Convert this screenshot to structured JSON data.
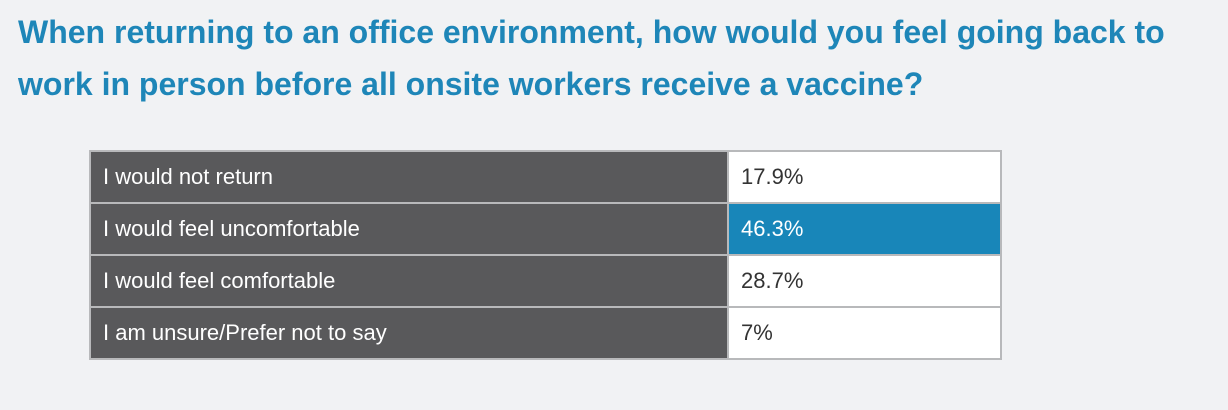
{
  "title": "When returning to an office environment, how would you feel going back to work in person before all onsite workers receive a vaccine?",
  "accent_color": "#1e86b8",
  "highlight_color": "#1886b9",
  "label_cell_color": "#59595b",
  "chart_data": {
    "type": "table",
    "title": "When returning to an office environment, how would you feel going back to work in person before all onsite workers receive a vaccine?",
    "categories": [
      "I would not return",
      "I would feel uncomfortable",
      "I would feel comfortable",
      "I am unsure/Prefer not to say"
    ],
    "values": [
      17.9,
      46.3,
      28.7,
      7
    ],
    "value_labels": [
      "17.9%",
      "46.3%",
      "28.7%",
      "7%"
    ],
    "unit": "%",
    "highlighted_index": 1
  }
}
